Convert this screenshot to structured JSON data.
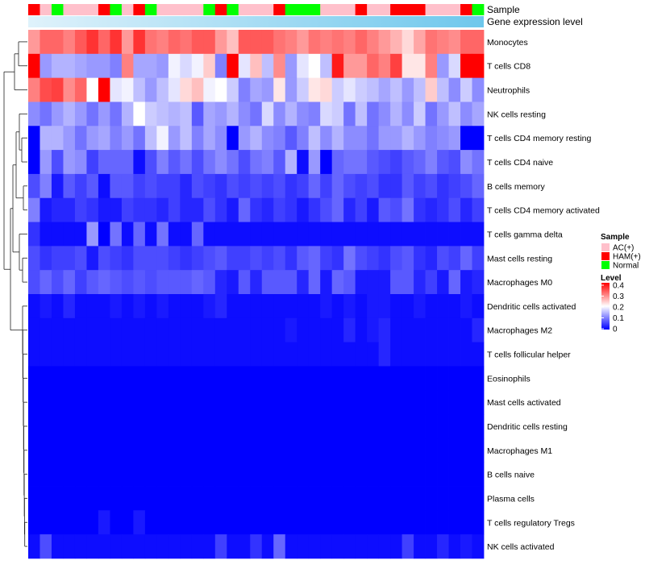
{
  "chart_data": {
    "type": "heatmap",
    "title": "",
    "annotations": {
      "sample_label": "Sample",
      "gene_label": "Gene expression level",
      "sample_row": [
        "HAM(+)",
        "AC(+)",
        "Normal",
        "AC(+)",
        "AC(+)",
        "AC(+)",
        "HAM(+)",
        "Normal",
        "AC(+)",
        "HAM(+)",
        "Normal",
        "AC(+)",
        "AC(+)",
        "AC(+)",
        "AC(+)",
        "Normal",
        "HAM(+)",
        "Normal",
        "AC(+)",
        "AC(+)",
        "AC(+)",
        "HAM(+)",
        "Normal",
        "Normal",
        "Normal",
        "AC(+)",
        "AC(+)",
        "AC(+)",
        "HAM(+)",
        "AC(+)",
        "AC(+)",
        "HAM(+)",
        "HAM(+)",
        "HAM(+)",
        "AC(+)",
        "AC(+)",
        "AC(+)",
        "HAM(+)",
        "Normal"
      ]
    },
    "rows": [
      "Monocytes",
      "T cells CD8",
      "Neutrophils",
      "NK cells resting",
      "T cells CD4 memory resting",
      "T cells CD4 naive",
      "B cells memory",
      "T cells CD4 memory activated",
      "T cells gamma delta",
      "Mast cells resting",
      "Macrophages M0",
      "Dendritic cells activated",
      "Macrophages M2",
      "T cells follicular helper",
      "Eosinophils",
      "Mast cells activated",
      "Dendritic cells resting",
      "Macrophages M1",
      "B cells naive",
      "Plasma cells",
      "T cells regulatory  Tregs",
      "NK cells activated"
    ],
    "values": [
      [
        0.28,
        0.32,
        0.32,
        0.3,
        0.33,
        0.36,
        0.32,
        0.36,
        0.28,
        0.36,
        0.31,
        0.3,
        0.32,
        0.31,
        0.33,
        0.33,
        0.28,
        0.25,
        0.33,
        0.33,
        0.33,
        0.31,
        0.3,
        0.28,
        0.31,
        0.3,
        0.31,
        0.3,
        0.32,
        0.3,
        0.28,
        0.26,
        0.23,
        0.27,
        0.31,
        0.3,
        0.29,
        0.32,
        0.32
      ],
      [
        0.4,
        0.12,
        0.14,
        0.14,
        0.13,
        0.12,
        0.12,
        0.1,
        0.3,
        0.13,
        0.13,
        0.12,
        0.19,
        0.17,
        0.19,
        0.24,
        0.1,
        0.4,
        0.18,
        0.25,
        0.15,
        0.29,
        0.12,
        0.18,
        0.2,
        0.15,
        0.38,
        0.28,
        0.28,
        0.32,
        0.3,
        0.35,
        0.22,
        0.22,
        0.3,
        0.12,
        0.17,
        0.4,
        0.4
      ],
      [
        0.3,
        0.34,
        0.35,
        0.29,
        0.32,
        0.2,
        0.4,
        0.18,
        0.19,
        0.15,
        0.12,
        0.15,
        0.18,
        0.23,
        0.25,
        0.19,
        0.2,
        0.16,
        0.1,
        0.13,
        0.12,
        0.22,
        0.12,
        0.16,
        0.22,
        0.23,
        0.16,
        0.18,
        0.16,
        0.15,
        0.13,
        0.15,
        0.12,
        0.15,
        0.24,
        0.15,
        0.11,
        0.16,
        0.11
      ],
      [
        0.11,
        0.09,
        0.12,
        0.14,
        0.12,
        0.09,
        0.12,
        0.09,
        0.14,
        0.2,
        0.16,
        0.15,
        0.14,
        0.15,
        0.07,
        0.13,
        0.12,
        0.14,
        0.11,
        0.09,
        0.17,
        0.11,
        0.14,
        0.11,
        0.1,
        0.17,
        0.16,
        0.09,
        0.15,
        0.09,
        0.11,
        0.14,
        0.11,
        0.16,
        0.09,
        0.12,
        0.15,
        0.11,
        0.13
      ],
      [
        0.0,
        0.14,
        0.14,
        0.12,
        0.09,
        0.12,
        0.13,
        0.1,
        0.12,
        0.09,
        0.15,
        0.19,
        0.12,
        0.15,
        0.1,
        0.13,
        0.11,
        0.0,
        0.12,
        0.14,
        0.11,
        0.1,
        0.07,
        0.1,
        0.15,
        0.11,
        0.14,
        0.11,
        0.11,
        0.09,
        0.12,
        0.12,
        0.14,
        0.12,
        0.1,
        0.11,
        0.12,
        0.0,
        0.0
      ],
      [
        0.0,
        0.12,
        0.06,
        0.12,
        0.11,
        0.05,
        0.08,
        0.08,
        0.08,
        0.01,
        0.06,
        0.1,
        0.07,
        0.09,
        0.06,
        0.09,
        0.11,
        0.09,
        0.06,
        0.09,
        0.1,
        0.07,
        0.14,
        0.01,
        0.12,
        0.0,
        0.08,
        0.09,
        0.09,
        0.07,
        0.06,
        0.05,
        0.07,
        0.08,
        0.1,
        0.07,
        0.06,
        0.11,
        0.09
      ],
      [
        0.06,
        0.1,
        0.02,
        0.07,
        0.05,
        0.07,
        0.01,
        0.07,
        0.07,
        0.05,
        0.06,
        0.05,
        0.05,
        0.03,
        0.06,
        0.05,
        0.04,
        0.06,
        0.05,
        0.06,
        0.05,
        0.06,
        0.04,
        0.05,
        0.08,
        0.05,
        0.08,
        0.06,
        0.05,
        0.06,
        0.04,
        0.04,
        0.07,
        0.05,
        0.06,
        0.04,
        0.05,
        0.06,
        0.08
      ],
      [
        0.1,
        0.02,
        0.03,
        0.03,
        0.05,
        0.04,
        0.02,
        0.02,
        0.05,
        0.04,
        0.04,
        0.03,
        0.05,
        0.03,
        0.03,
        0.06,
        0.04,
        0.02,
        0.08,
        0.04,
        0.03,
        0.05,
        0.04,
        0.02,
        0.04,
        0.06,
        0.08,
        0.03,
        0.05,
        0.02,
        0.07,
        0.06,
        0.09,
        0.04,
        0.03,
        0.04,
        0.06,
        0.03,
        0.05
      ],
      [
        0.04,
        0.01,
        0.01,
        0.01,
        0.01,
        0.12,
        0.0,
        0.09,
        0.01,
        0.08,
        0.01,
        0.09,
        0.01,
        0.01,
        0.08,
        0.01,
        0.01,
        0.01,
        0.01,
        0.01,
        0.01,
        0.01,
        0.01,
        0.01,
        0.01,
        0.01,
        0.01,
        0.01,
        0.01,
        0.01,
        0.01,
        0.01,
        0.01,
        0.01,
        0.01,
        0.01,
        0.01,
        0.01,
        0.01
      ],
      [
        0.06,
        0.04,
        0.05,
        0.05,
        0.06,
        0.02,
        0.06,
        0.05,
        0.04,
        0.06,
        0.06,
        0.06,
        0.05,
        0.04,
        0.05,
        0.06,
        0.07,
        0.05,
        0.05,
        0.06,
        0.05,
        0.06,
        0.04,
        0.07,
        0.08,
        0.05,
        0.04,
        0.09,
        0.06,
        0.05,
        0.04,
        0.06,
        0.07,
        0.04,
        0.03,
        0.06,
        0.05,
        0.08,
        0.05
      ],
      [
        0.06,
        0.08,
        0.06,
        0.08,
        0.05,
        0.07,
        0.08,
        0.07,
        0.06,
        0.07,
        0.06,
        0.07,
        0.07,
        0.07,
        0.08,
        0.07,
        0.03,
        0.02,
        0.07,
        0.03,
        0.07,
        0.07,
        0.07,
        0.03,
        0.08,
        0.02,
        0.08,
        0.07,
        0.02,
        0.02,
        0.02,
        0.07,
        0.07,
        0.03,
        0.05,
        0.02,
        0.08,
        0.02,
        0.03
      ],
      [
        0.01,
        0.02,
        0.01,
        0.03,
        0.01,
        0.01,
        0.01,
        0.02,
        0.01,
        0.02,
        0.01,
        0.02,
        0.01,
        0.01,
        0.01,
        0.02,
        0.03,
        0.01,
        0.01,
        0.01,
        0.01,
        0.01,
        0.01,
        0.01,
        0.01,
        0.02,
        0.01,
        0.02,
        0.01,
        0.02,
        0.02,
        0.01,
        0.01,
        0.02,
        0.01,
        0.01,
        0.01,
        0.02,
        0.01
      ],
      [
        0.01,
        0.01,
        0.01,
        0.01,
        0.01,
        0.01,
        0.01,
        0.01,
        0.01,
        0.01,
        0.01,
        0.01,
        0.01,
        0.01,
        0.01,
        0.01,
        0.01,
        0.01,
        0.01,
        0.01,
        0.01,
        0.01,
        0.02,
        0.01,
        0.01,
        0.01,
        0.01,
        0.03,
        0.01,
        0.02,
        0.03,
        0.01,
        0.01,
        0.01,
        0.01,
        0.01,
        0.01,
        0.01,
        0.03
      ],
      [
        0.01,
        0.01,
        0.01,
        0.01,
        0.01,
        0.01,
        0.01,
        0.01,
        0.01,
        0.01,
        0.01,
        0.01,
        0.01,
        0.01,
        0.01,
        0.01,
        0.01,
        0.01,
        0.01,
        0.01,
        0.01,
        0.01,
        0.01,
        0.01,
        0.01,
        0.01,
        0.01,
        0.01,
        0.01,
        0.01,
        0.03,
        0.01,
        0.01,
        0.01,
        0.01,
        0.01,
        0.01,
        0.01,
        0.01
      ],
      [
        0.0,
        0.0,
        0.0,
        0.0,
        0.0,
        0.0,
        0.0,
        0.0,
        0.0,
        0.0,
        0.0,
        0.0,
        0.0,
        0.0,
        0.0,
        0.0,
        0.0,
        0.0,
        0.0,
        0.0,
        0.0,
        0.0,
        0.0,
        0.0,
        0.0,
        0.0,
        0.0,
        0.0,
        0.0,
        0.0,
        0.0,
        0.0,
        0.0,
        0.0,
        0.0,
        0.0,
        0.0,
        0.0,
        0.0
      ],
      [
        0.0,
        0.0,
        0.0,
        0.0,
        0.0,
        0.0,
        0.0,
        0.0,
        0.0,
        0.0,
        0.0,
        0.0,
        0.0,
        0.0,
        0.0,
        0.0,
        0.0,
        0.0,
        0.0,
        0.0,
        0.0,
        0.0,
        0.0,
        0.0,
        0.0,
        0.0,
        0.0,
        0.0,
        0.0,
        0.0,
        0.0,
        0.0,
        0.0,
        0.0,
        0.0,
        0.0,
        0.0,
        0.0,
        0.0
      ],
      [
        0.0,
        0.0,
        0.0,
        0.0,
        0.0,
        0.0,
        0.0,
        0.0,
        0.0,
        0.0,
        0.0,
        0.0,
        0.0,
        0.0,
        0.0,
        0.0,
        0.0,
        0.0,
        0.0,
        0.0,
        0.0,
        0.0,
        0.0,
        0.0,
        0.0,
        0.0,
        0.0,
        0.0,
        0.0,
        0.0,
        0.0,
        0.0,
        0.0,
        0.0,
        0.0,
        0.0,
        0.0,
        0.0,
        0.0
      ],
      [
        0.0,
        0.0,
        0.0,
        0.0,
        0.0,
        0.0,
        0.0,
        0.0,
        0.0,
        0.0,
        0.0,
        0.0,
        0.0,
        0.0,
        0.0,
        0.0,
        0.0,
        0.0,
        0.0,
        0.0,
        0.0,
        0.0,
        0.0,
        0.0,
        0.0,
        0.0,
        0.0,
        0.0,
        0.0,
        0.0,
        0.0,
        0.0,
        0.0,
        0.0,
        0.0,
        0.0,
        0.0,
        0.0,
        0.0
      ],
      [
        0.0,
        0.0,
        0.0,
        0.0,
        0.0,
        0.0,
        0.0,
        0.0,
        0.0,
        0.0,
        0.0,
        0.0,
        0.0,
        0.0,
        0.0,
        0.0,
        0.0,
        0.0,
        0.0,
        0.0,
        0.0,
        0.0,
        0.0,
        0.0,
        0.0,
        0.0,
        0.0,
        0.0,
        0.0,
        0.0,
        0.0,
        0.0,
        0.0,
        0.0,
        0.0,
        0.0,
        0.0,
        0.0,
        0.0
      ],
      [
        0.0,
        0.0,
        0.0,
        0.0,
        0.0,
        0.0,
        0.0,
        0.0,
        0.0,
        0.0,
        0.0,
        0.0,
        0.0,
        0.0,
        0.0,
        0.0,
        0.0,
        0.0,
        0.0,
        0.0,
        0.0,
        0.0,
        0.0,
        0.0,
        0.0,
        0.0,
        0.0,
        0.0,
        0.0,
        0.0,
        0.0,
        0.0,
        0.0,
        0.0,
        0.0,
        0.0,
        0.0,
        0.0,
        0.0
      ],
      [
        0.0,
        0.0,
        0.0,
        0.0,
        0.0,
        0.0,
        0.02,
        0.0,
        0.0,
        0.02,
        0.0,
        0.0,
        0.0,
        0.0,
        0.0,
        0.0,
        0.0,
        0.0,
        0.0,
        0.0,
        0.0,
        0.0,
        0.0,
        0.0,
        0.0,
        0.0,
        0.0,
        0.0,
        0.0,
        0.0,
        0.0,
        0.0,
        0.0,
        0.0,
        0.0,
        0.0,
        0.0,
        0.0,
        0.0
      ],
      [
        0.01,
        0.06,
        0.01,
        0.01,
        0.01,
        0.01,
        0.01,
        0.01,
        0.01,
        0.01,
        0.01,
        0.01,
        0.01,
        0.01,
        0.01,
        0.01,
        0.05,
        0.01,
        0.01,
        0.04,
        0.01,
        0.08,
        0.01,
        0.01,
        0.01,
        0.01,
        0.01,
        0.01,
        0.01,
        0.01,
        0.01,
        0.01,
        0.05,
        0.01,
        0.01,
        0.03,
        0.01,
        0.02,
        0.01
      ]
    ],
    "value_range": [
      0,
      0.4
    ],
    "colors": {
      "low": "#0000ff",
      "mid": "#ffffff",
      "high": "#ff0000",
      "mid_value": 0.2
    },
    "gene_bar_color": "#6ec7ec",
    "legend": {
      "sample": {
        "title": "Sample",
        "items": [
          {
            "label": "AC(+)",
            "color": "#ffc0cb"
          },
          {
            "label": "HAM(+)",
            "color": "#ff0000"
          },
          {
            "label": "Normal",
            "color": "#00ff00"
          }
        ]
      },
      "level": {
        "title": "Level",
        "ticks": [
          "0.4",
          "0.3",
          "0.2",
          "0.1",
          "0"
        ]
      }
    },
    "dendrogram": "row-clustering"
  }
}
